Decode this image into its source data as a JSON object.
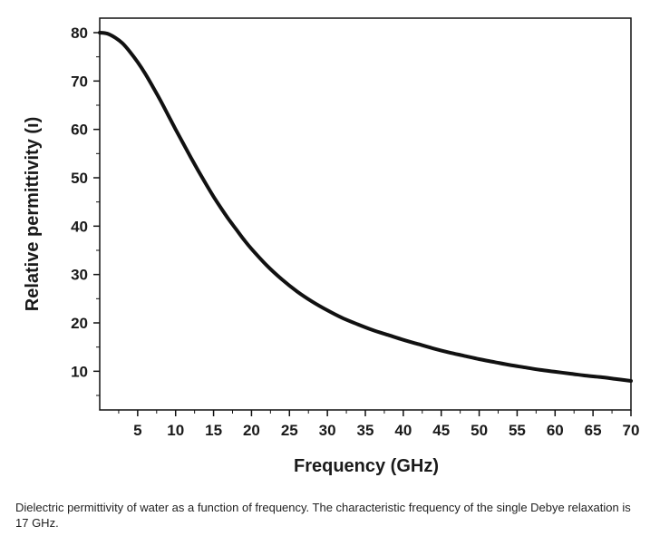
{
  "caption": "Dielectric permittivity of water as a function of frequency. The characteristic frequency of the single Debye relaxation is 17 GHz.",
  "chart_data": {
    "type": "line",
    "title": "",
    "xlabel": "Frequency (GHz)",
    "ylabel": "Relative permittivity (ı)",
    "xlim": [
      0,
      70
    ],
    "ylim": [
      2,
      83
    ],
    "x_ticks": [
      5,
      10,
      15,
      20,
      25,
      30,
      35,
      40,
      45,
      50,
      55,
      60,
      65,
      70
    ],
    "y_ticks": [
      10,
      20,
      30,
      40,
      50,
      60,
      70,
      80
    ],
    "grid": false,
    "legend": "none",
    "line_color": "#111111",
    "series": [
      {
        "x": [
          0,
          1,
          2,
          3,
          4,
          5,
          6,
          7,
          8,
          9,
          10,
          11,
          12,
          13,
          14,
          15,
          16,
          17,
          18,
          19,
          20,
          22,
          24,
          26,
          28,
          30,
          32,
          34,
          36,
          38,
          40,
          42,
          44,
          46,
          48,
          50,
          52,
          54,
          56,
          58,
          60,
          62,
          64,
          66,
          68,
          70
        ],
        "y": [
          80.0,
          79.8,
          79.0,
          77.8,
          76.0,
          73.9,
          71.5,
          68.8,
          66.0,
          63.0,
          60.0,
          57.1,
          54.2,
          51.4,
          48.7,
          46.1,
          43.7,
          41.4,
          39.3,
          37.2,
          35.3,
          31.9,
          29.0,
          26.5,
          24.4,
          22.6,
          21.0,
          19.7,
          18.5,
          17.5,
          16.5,
          15.6,
          14.7,
          13.9,
          13.2,
          12.5,
          11.9,
          11.3,
          10.8,
          10.3,
          9.9,
          9.5,
          9.1,
          8.8,
          8.4,
          8.0
        ]
      }
    ]
  }
}
